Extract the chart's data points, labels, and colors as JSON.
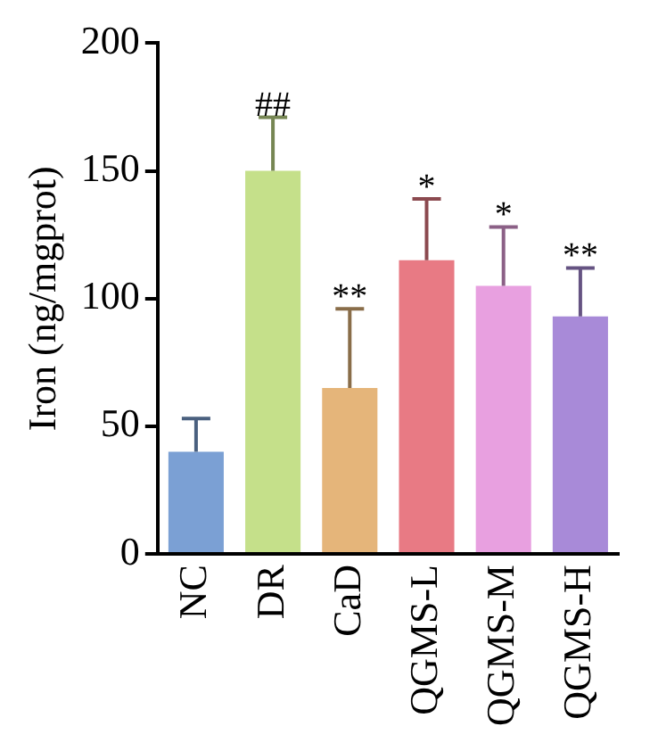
{
  "chart_data": {
    "type": "bar",
    "ylabel": "Iron (ng/mgprot)",
    "categories": [
      "NC",
      "DR",
      "CaD",
      "QGMS-L",
      "QGMS-M",
      "QGMS-H"
    ],
    "values": [
      40,
      150,
      65,
      115,
      105,
      93
    ],
    "errors": [
      13,
      21,
      31,
      24,
      23,
      19
    ],
    "colors": [
      "#7ba0d4",
      "#c5e08a",
      "#e5b57a",
      "#e87a84",
      "#e8a0e0",
      "#a88ad8"
    ],
    "ylim": [
      0,
      200
    ],
    "yticks": [
      0,
      50,
      100,
      150,
      200
    ],
    "grid": false,
    "legend": false,
    "annotations": [
      {
        "text": "##",
        "x": "DR",
        "y": 171
      },
      {
        "text": "**",
        "x": "CaD",
        "y": 96
      },
      {
        "text": "*",
        "x": "QGMS-L",
        "y": 139
      },
      {
        "text": "*",
        "x": "QGMS-M",
        "y": 128
      },
      {
        "text": "**",
        "x": "QGMS-H",
        "y": 112
      }
    ]
  }
}
